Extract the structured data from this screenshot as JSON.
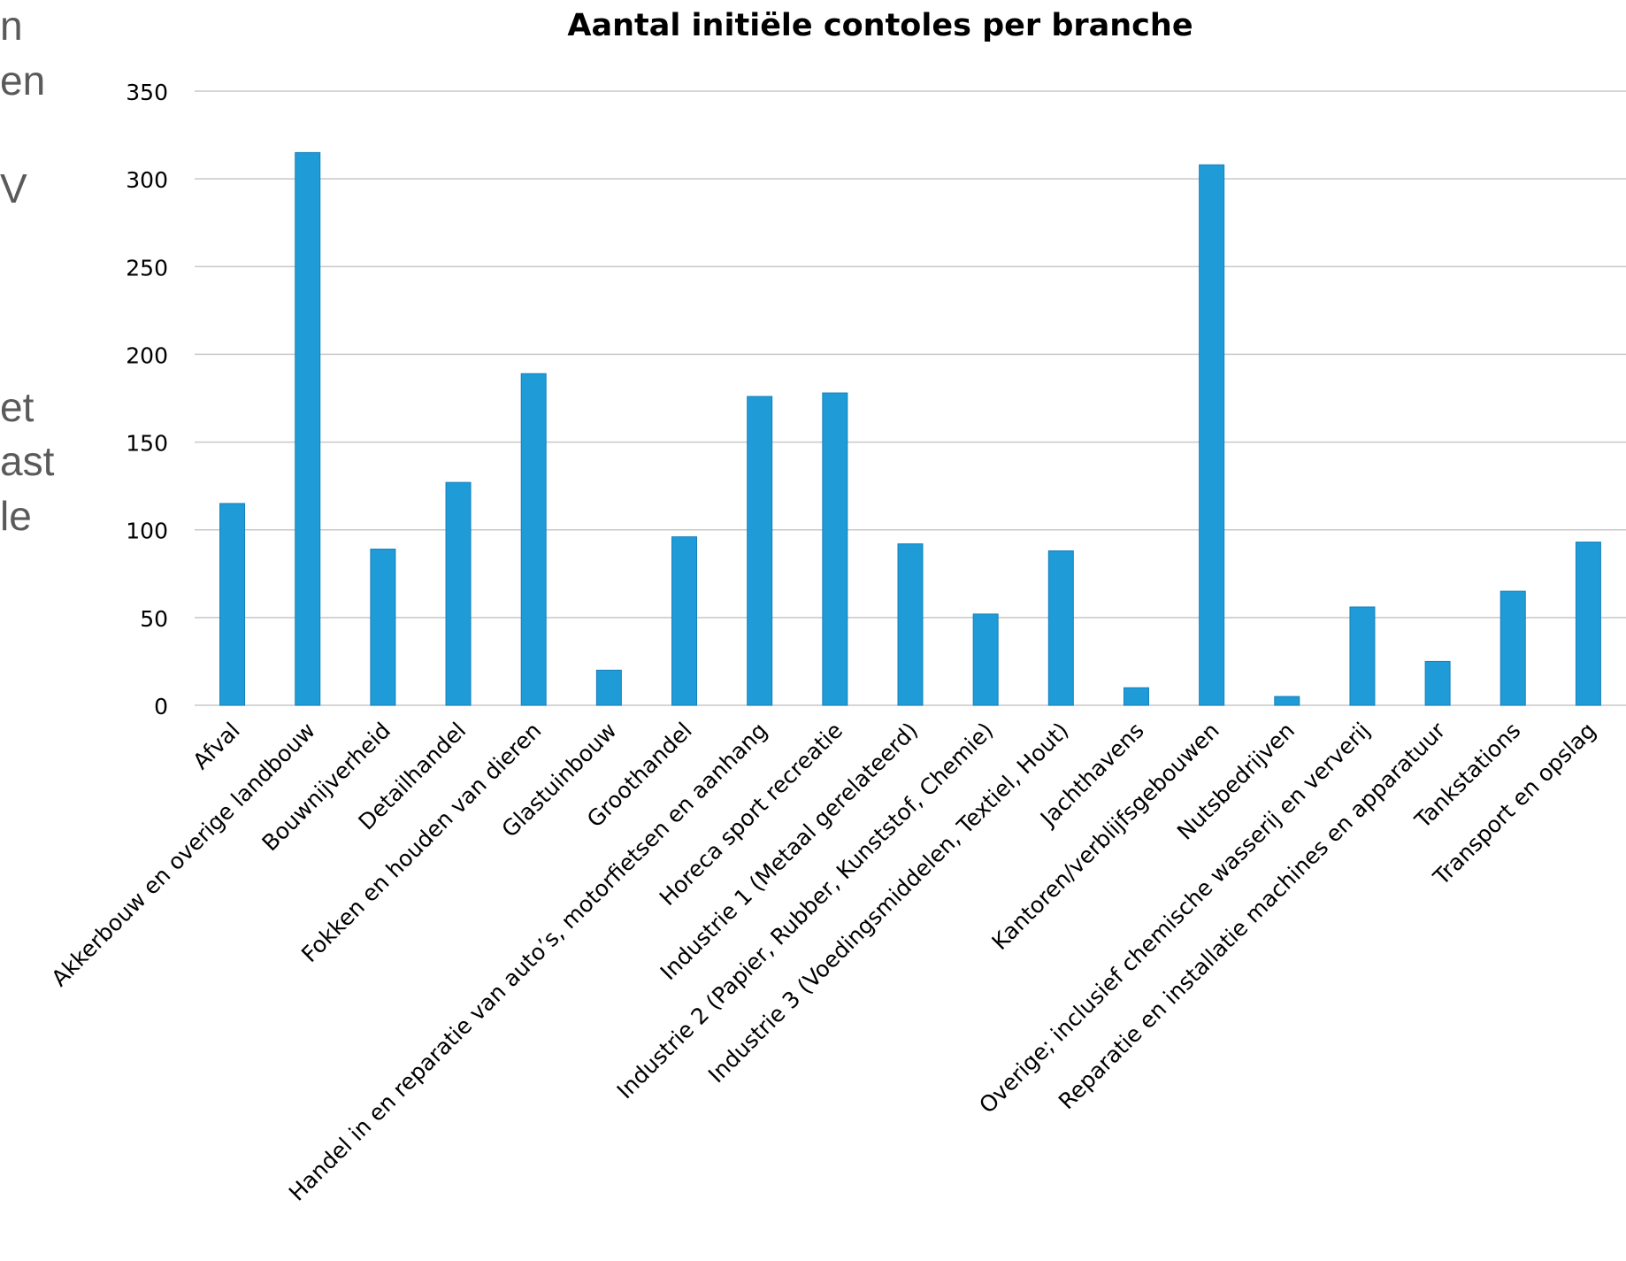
{
  "background_text": [
    "n",
    "en",
    "V",
    "et",
    "ast",
    "le"
  ],
  "colors": {
    "bar": "#1f9bd7",
    "bar_edge": "#1580bb",
    "grid": "#c8c8c8",
    "text": "#000000",
    "background_text": "#5a5a5a"
  },
  "chart_data": {
    "type": "bar",
    "title": "Aantal initiële contoles per branche",
    "xlabel": "",
    "ylabel": "",
    "ylim": [
      0,
      350
    ],
    "yticks": [
      0,
      50,
      100,
      150,
      200,
      250,
      300,
      350
    ],
    "grid": true,
    "legend": "none",
    "categories": [
      "Afval",
      "Akkerbouw en overige landbouw",
      "Bouwnijverheid",
      "Detailhandel",
      "Fokken en houden van dieren",
      "Glastuinbouw",
      "Groothandel",
      "Handel in en reparatie van auto’s, motorfietsen en aanhang",
      "Horeca sport recreatie",
      "Industrie 1 (Metaal gerelateerd)",
      "Industrie 2 (Papier, Rubber, Kunststof, Chemie)",
      "Industrie 3 (Voedingsmiddelen, Textiel, Hout)",
      "Jachthavens",
      "Kantoren/verblijfsgebouwen",
      "Nutsbedrijven",
      "Overige; inclusief chemische wasserij en ververij",
      "Reparatie en installatie machines en apparatuur",
      "Tankstations",
      "Transport en opslag"
    ],
    "values": [
      115,
      315,
      89,
      127,
      189,
      20,
      96,
      176,
      178,
      92,
      52,
      88,
      10,
      308,
      5,
      56,
      25,
      65,
      93
    ]
  }
}
